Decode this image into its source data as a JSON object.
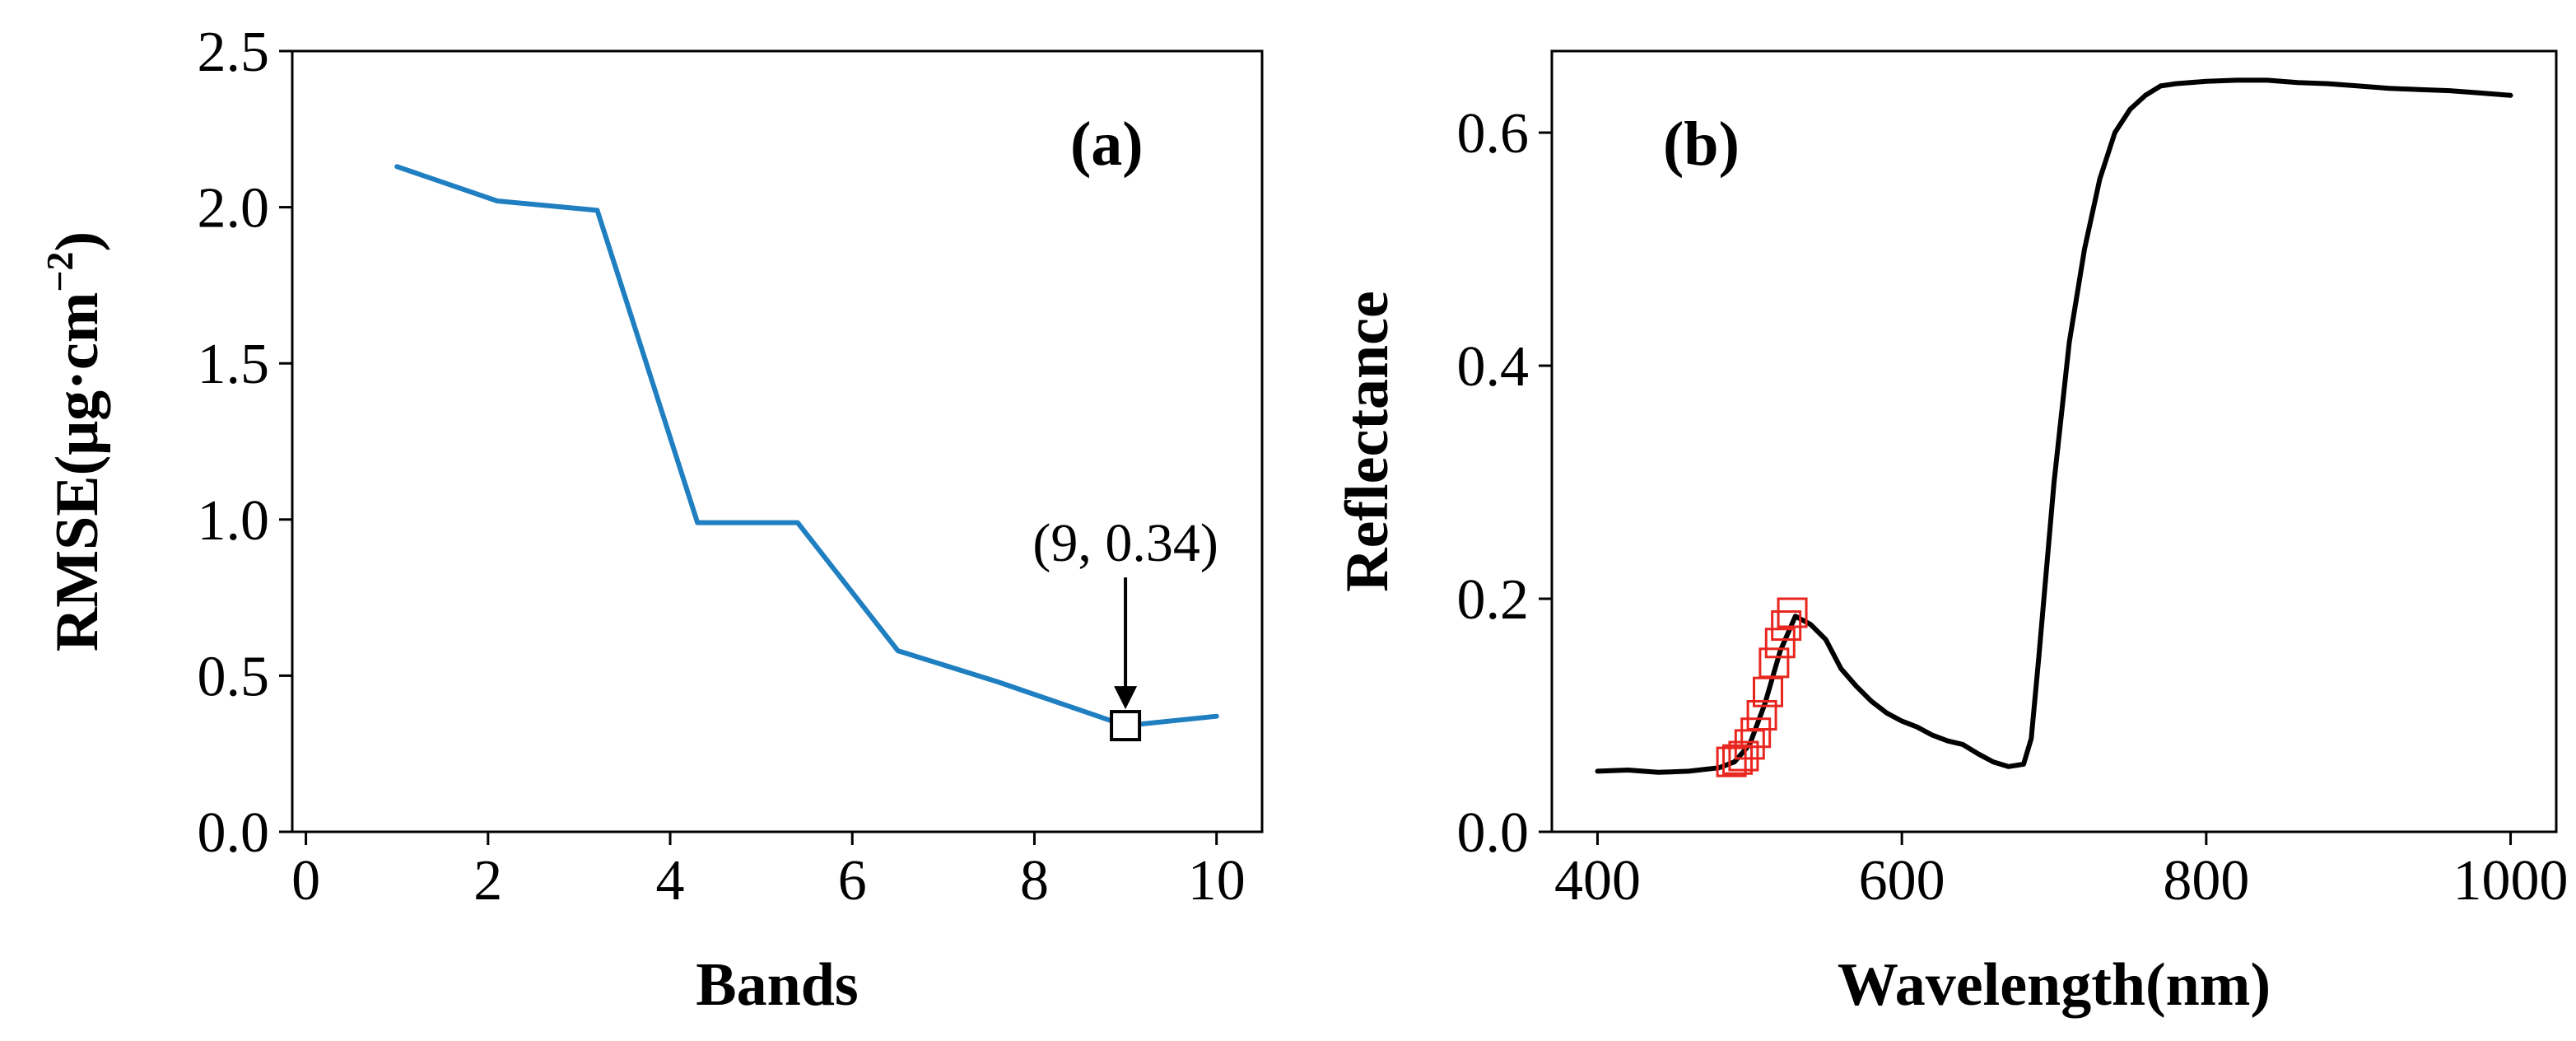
{
  "chart_data": [
    {
      "type": "line",
      "panel_label": "(a)",
      "xlabel": "Bands",
      "ylabel": "RMSE(μg·cm",
      "ylabel_sup": "−2",
      "ylabel_close": ")",
      "xlim": [
        -0.15,
        10.5
      ],
      "ylim": [
        0.0,
        2.5
      ],
      "xticks": [
        0,
        2,
        4,
        6,
        8,
        10
      ],
      "yticks": [
        0.0,
        0.5,
        1.0,
        1.5,
        2.0,
        2.5
      ],
      "xtick_labels": [
        "0",
        "2",
        "4",
        "6",
        "8",
        "10"
      ],
      "ytick_labels": [
        "0.0",
        "0.5",
        "1.0",
        "1.5",
        "2.0",
        "2.5"
      ],
      "grid": false,
      "series": [
        {
          "name": "RMSE",
          "color": "#1f7fc0",
          "x": [
            1,
            2.1,
            3.2,
            4.3,
            5.4,
            6.5,
            7.6,
            8.7,
            9,
            10
          ],
          "y": [
            2.13,
            2.02,
            1.99,
            0.99,
            0.99,
            0.58,
            0.48,
            0.37,
            0.34,
            0.37
          ]
        }
      ],
      "annotation": {
        "text": "(9, 0.34)",
        "x": 9,
        "y": 0.34,
        "marker": "square"
      }
    },
    {
      "type": "line",
      "panel_label": "(b)",
      "xlabel": "Wavelength(nm)",
      "ylabel": "Reflectance",
      "xlim": [
        370,
        1030
      ],
      "ylim": [
        0.0,
        0.67
      ],
      "xticks": [
        400,
        600,
        800,
        1000
      ],
      "yticks": [
        0.0,
        0.2,
        0.4,
        0.6
      ],
      "xtick_labels": [
        "400",
        "600",
        "800",
        "1000"
      ],
      "ytick_labels": [
        "0.0",
        "0.2",
        "0.4",
        "0.6"
      ],
      "grid": false,
      "series": [
        {
          "name": "Reflectance spectrum",
          "color": "#000000",
          "x": [
            400,
            420,
            440,
            460,
            480,
            490,
            500,
            510,
            520,
            530,
            540,
            550,
            560,
            570,
            580,
            590,
            600,
            610,
            620,
            630,
            640,
            650,
            660,
            670,
            680,
            685,
            690,
            700,
            710,
            720,
            730,
            740,
            750,
            760,
            770,
            780,
            800,
            820,
            840,
            860,
            880,
            900,
            920,
            940,
            960,
            980,
            1000
          ],
          "y": [
            0.052,
            0.053,
            0.051,
            0.052,
            0.055,
            0.06,
            0.075,
            0.11,
            0.155,
            0.185,
            0.178,
            0.165,
            0.14,
            0.125,
            0.112,
            0.102,
            0.095,
            0.09,
            0.083,
            0.078,
            0.075,
            0.067,
            0.06,
            0.056,
            0.058,
            0.08,
            0.15,
            0.3,
            0.42,
            0.5,
            0.56,
            0.6,
            0.62,
            0.632,
            0.64,
            0.642,
            0.644,
            0.645,
            0.645,
            0.643,
            0.642,
            0.64,
            0.638,
            0.637,
            0.636,
            0.634,
            0.632
          ]
        }
      ],
      "selected_bands": {
        "name": "Selected bands",
        "color": "#e8251e",
        "marker": "square",
        "x": [
          488,
          492,
          496,
          500,
          504,
          508,
          512,
          516,
          520,
          524,
          528
        ],
        "y": [
          0.06,
          0.062,
          0.065,
          0.075,
          0.085,
          0.1,
          0.12,
          0.145,
          0.162,
          0.177,
          0.188
        ]
      }
    }
  ]
}
